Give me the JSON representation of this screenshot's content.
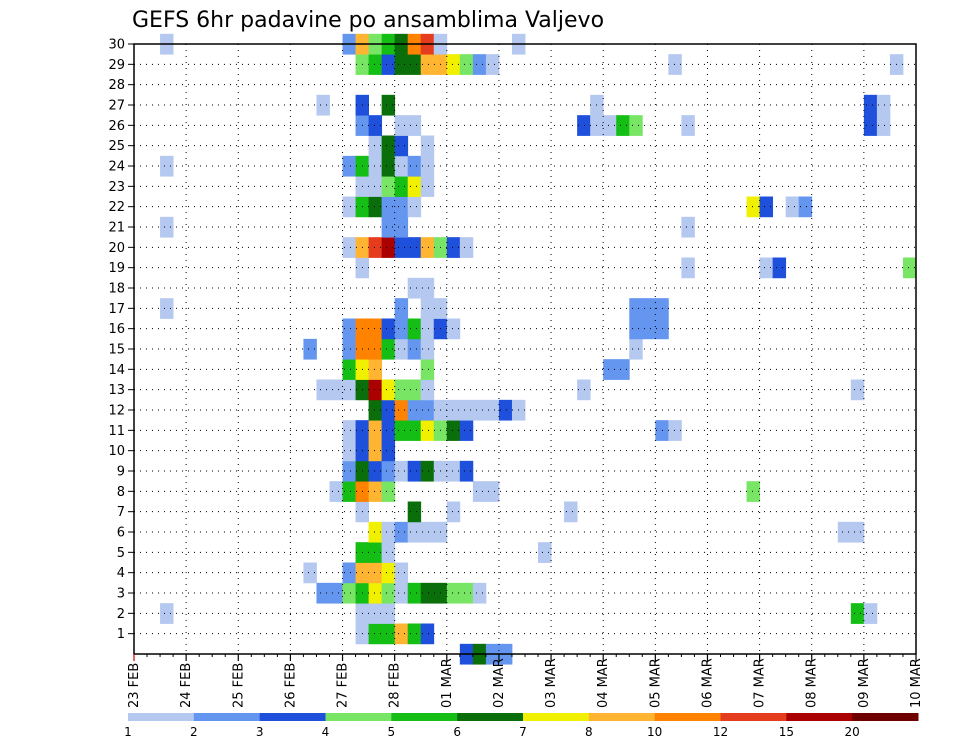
{
  "chart_data": {
    "type": "heatmap",
    "title": "GEFS 6hr padavine po ansamblima Valjevo",
    "xlabel": "",
    "ylabel": "",
    "y_ticks": [
      "1",
      "2",
      "3",
      "4",
      "5",
      "6",
      "7",
      "8",
      "9",
      "10",
      "11",
      "12",
      "13",
      "14",
      "15",
      "16",
      "17",
      "18",
      "19",
      "20",
      "21",
      "22",
      "23",
      "24",
      "25",
      "26",
      "27",
      "28",
      "29",
      "30"
    ],
    "x_ticks": [
      "23 FEB",
      "24 FEB",
      "25 FEB",
      "26 FEB",
      "27 FEB",
      "28 FEB",
      "01 MAR",
      "02 MAR",
      "03 MAR",
      "04 MAR",
      "05 MAR",
      "06 MAR",
      "07 MAR",
      "08 MAR",
      "09 MAR",
      "10 MAR"
    ],
    "x_unit": "6-hour step from 23 FEB 00Z (4 steps per day)",
    "x_range": [
      0,
      60
    ],
    "y_range": [
      0,
      30
    ],
    "grid": true,
    "legend": {
      "position": "bottom",
      "colors": [
        "#b4c8f0",
        "#6496f0",
        "#1e50dc",
        "#78e664",
        "#14be14",
        "#0a6e0a",
        "#f0f000",
        "#ffb432",
        "#ff8200",
        "#e63c1e",
        "#aa0000",
        "#6e0000"
      ],
      "labels": [
        "1",
        "2",
        "3",
        "4",
        "5",
        "6",
        "7",
        "8",
        "10",
        "12",
        "15",
        "20"
      ]
    },
    "cells_format": "[member, time_step, color_class]",
    "cells": [
      [
        0,
        25,
        3
      ],
      [
        0,
        26,
        6
      ],
      [
        0,
        27,
        2
      ],
      [
        0,
        28,
        2
      ],
      [
        1,
        17,
        1
      ],
      [
        1,
        18,
        5
      ],
      [
        1,
        19,
        5
      ],
      [
        1,
        20,
        8
      ],
      [
        1,
        21,
        5
      ],
      [
        1,
        22,
        3
      ],
      [
        2,
        2,
        1
      ],
      [
        2,
        17,
        1
      ],
      [
        2,
        18,
        1
      ],
      [
        2,
        19,
        1
      ],
      [
        2,
        55,
        5
      ],
      [
        2,
        56,
        1
      ],
      [
        3,
        14,
        2
      ],
      [
        3,
        15,
        2
      ],
      [
        3,
        16,
        4
      ],
      [
        3,
        17,
        5
      ],
      [
        3,
        18,
        7
      ],
      [
        3,
        19,
        4
      ],
      [
        3,
        20,
        1
      ],
      [
        3,
        21,
        5
      ],
      [
        3,
        22,
        6
      ],
      [
        3,
        23,
        6
      ],
      [
        3,
        24,
        4
      ],
      [
        3,
        25,
        4
      ],
      [
        3,
        26,
        1
      ],
      [
        4,
        13,
        1
      ],
      [
        4,
        16,
        2
      ],
      [
        4,
        17,
        8
      ],
      [
        4,
        18,
        8
      ],
      [
        4,
        19,
        7
      ],
      [
        4,
        20,
        1
      ],
      [
        5,
        17,
        5
      ],
      [
        5,
        18,
        5
      ],
      [
        5,
        19,
        1
      ],
      [
        5,
        31,
        1
      ],
      [
        6,
        18,
        7
      ],
      [
        6,
        19,
        1
      ],
      [
        6,
        20,
        2
      ],
      [
        6,
        21,
        1
      ],
      [
        6,
        22,
        1
      ],
      [
        6,
        23,
        1
      ],
      [
        6,
        54,
        1
      ],
      [
        6,
        55,
        1
      ],
      [
        7,
        17,
        1
      ],
      [
        7,
        21,
        6
      ],
      [
        7,
        24,
        1
      ],
      [
        7,
        33,
        1
      ],
      [
        8,
        15,
        1
      ],
      [
        8,
        16,
        5
      ],
      [
        8,
        17,
        9
      ],
      [
        8,
        18,
        8
      ],
      [
        8,
        19,
        4
      ],
      [
        8,
        26,
        1
      ],
      [
        8,
        27,
        1
      ],
      [
        8,
        47,
        4
      ],
      [
        9,
        16,
        2
      ],
      [
        9,
        17,
        6
      ],
      [
        9,
        18,
        3
      ],
      [
        9,
        19,
        2
      ],
      [
        9,
        20,
        1
      ],
      [
        9,
        21,
        3
      ],
      [
        9,
        22,
        6
      ],
      [
        9,
        23,
        1
      ],
      [
        9,
        24,
        1
      ],
      [
        9,
        25,
        3
      ],
      [
        10,
        16,
        1
      ],
      [
        10,
        17,
        3
      ],
      [
        10,
        18,
        8
      ],
      [
        10,
        19,
        3
      ],
      [
        11,
        16,
        1
      ],
      [
        11,
        17,
        3
      ],
      [
        11,
        18,
        8
      ],
      [
        11,
        19,
        3
      ],
      [
        11,
        20,
        5
      ],
      [
        11,
        21,
        5
      ],
      [
        11,
        22,
        7
      ],
      [
        11,
        23,
        4
      ],
      [
        11,
        24,
        6
      ],
      [
        11,
        25,
        3
      ],
      [
        11,
        40,
        2
      ],
      [
        11,
        41,
        1
      ],
      [
        12,
        18,
        6
      ],
      [
        12,
        19,
        3
      ],
      [
        12,
        20,
        9
      ],
      [
        12,
        21,
        2
      ],
      [
        12,
        22,
        2
      ],
      [
        12,
        23,
        1
      ],
      [
        12,
        24,
        1
      ],
      [
        12,
        25,
        1
      ],
      [
        12,
        26,
        1
      ],
      [
        12,
        27,
        1
      ],
      [
        12,
        28,
        3
      ],
      [
        12,
        29,
        1
      ],
      [
        13,
        14,
        1
      ],
      [
        13,
        15,
        1
      ],
      [
        13,
        16,
        1
      ],
      [
        13,
        17,
        6
      ],
      [
        13,
        18,
        11
      ],
      [
        13,
        19,
        7
      ],
      [
        13,
        20,
        4
      ],
      [
        13,
        21,
        4
      ],
      [
        13,
        22,
        1
      ],
      [
        13,
        34,
        1
      ],
      [
        13,
        55,
        1
      ],
      [
        14,
        16,
        5
      ],
      [
        14,
        17,
        7
      ],
      [
        14,
        18,
        8
      ],
      [
        14,
        22,
        4
      ],
      [
        14,
        36,
        2
      ],
      [
        14,
        37,
        2
      ],
      [
        15,
        13,
        2
      ],
      [
        15,
        16,
        2
      ],
      [
        15,
        17,
        9
      ],
      [
        15,
        18,
        9
      ],
      [
        15,
        19,
        5
      ],
      [
        15,
        20,
        1
      ],
      [
        15,
        21,
        2
      ],
      [
        15,
        22,
        1
      ],
      [
        15,
        38,
        1
      ],
      [
        16,
        16,
        2
      ],
      [
        16,
        17,
        9
      ],
      [
        16,
        18,
        9
      ],
      [
        16,
        19,
        3
      ],
      [
        16,
        20,
        2
      ],
      [
        16,
        21,
        5
      ],
      [
        16,
        22,
        1
      ],
      [
        16,
        23,
        3
      ],
      [
        16,
        24,
        1
      ],
      [
        16,
        38,
        2
      ],
      [
        16,
        39,
        2
      ],
      [
        16,
        40,
        2
      ],
      [
        17,
        2,
        1
      ],
      [
        17,
        20,
        2
      ],
      [
        17,
        22,
        1
      ],
      [
        17,
        23,
        1
      ],
      [
        17,
        38,
        2
      ],
      [
        17,
        39,
        2
      ],
      [
        17,
        40,
        2
      ],
      [
        18,
        21,
        1
      ],
      [
        18,
        22,
        1
      ],
      [
        19,
        17,
        1
      ],
      [
        19,
        42,
        1
      ],
      [
        19,
        48,
        1
      ],
      [
        19,
        49,
        3
      ],
      [
        19,
        59,
        4
      ],
      [
        20,
        16,
        1
      ],
      [
        20,
        17,
        8
      ],
      [
        20,
        18,
        10
      ],
      [
        20,
        19,
        11
      ],
      [
        20,
        20,
        3
      ],
      [
        20,
        21,
        3
      ],
      [
        20,
        22,
        8
      ],
      [
        20,
        23,
        4
      ],
      [
        20,
        24,
        3
      ],
      [
        20,
        25,
        1
      ],
      [
        21,
        2,
        1
      ],
      [
        21,
        19,
        2
      ],
      [
        21,
        20,
        2
      ],
      [
        21,
        42,
        1
      ],
      [
        22,
        16,
        1
      ],
      [
        22,
        17,
        5
      ],
      [
        22,
        18,
        6
      ],
      [
        22,
        19,
        2
      ],
      [
        22,
        20,
        2
      ],
      [
        22,
        21,
        1
      ],
      [
        22,
        47,
        7
      ],
      [
        22,
        48,
        3
      ],
      [
        22,
        50,
        1
      ],
      [
        22,
        51,
        2
      ],
      [
        23,
        17,
        1
      ],
      [
        23,
        18,
        1
      ],
      [
        23,
        19,
        4
      ],
      [
        23,
        20,
        5
      ],
      [
        23,
        21,
        7
      ],
      [
        23,
        22,
        1
      ],
      [
        24,
        2,
        1
      ],
      [
        24,
        16,
        2
      ],
      [
        24,
        17,
        5
      ],
      [
        24,
        18,
        1
      ],
      [
        24,
        19,
        6
      ],
      [
        24,
        20,
        1
      ],
      [
        24,
        21,
        2
      ],
      [
        24,
        22,
        1
      ],
      [
        25,
        18,
        1
      ],
      [
        25,
        19,
        6
      ],
      [
        25,
        20,
        3
      ],
      [
        25,
        22,
        1
      ],
      [
        26,
        17,
        2
      ],
      [
        26,
        18,
        3
      ],
      [
        26,
        20,
        1
      ],
      [
        26,
        21,
        1
      ],
      [
        26,
        34,
        3
      ],
      [
        26,
        35,
        1
      ],
      [
        26,
        36,
        1
      ],
      [
        26,
        37,
        5
      ],
      [
        26,
        38,
        4
      ],
      [
        26,
        42,
        1
      ],
      [
        26,
        56,
        3
      ],
      [
        26,
        57,
        1
      ],
      [
        27,
        14,
        1
      ],
      [
        27,
        17,
        3
      ],
      [
        27,
        19,
        6
      ],
      [
        27,
        35,
        1
      ],
      [
        27,
        56,
        3
      ],
      [
        27,
        57,
        1
      ],
      [
        29,
        17,
        4
      ],
      [
        29,
        18,
        5
      ],
      [
        29,
        19,
        3
      ],
      [
        29,
        20,
        6
      ],
      [
        29,
        21,
        6
      ],
      [
        29,
        22,
        8
      ],
      [
        29,
        23,
        8
      ],
      [
        29,
        24,
        7
      ],
      [
        29,
        25,
        4
      ],
      [
        29,
        26,
        2
      ],
      [
        29,
        27,
        1
      ],
      [
        29,
        41,
        1
      ],
      [
        29,
        58,
        1
      ],
      [
        30,
        2,
        1
      ],
      [
        30,
        16,
        2
      ],
      [
        30,
        17,
        8
      ],
      [
        30,
        18,
        4
      ],
      [
        30,
        19,
        5
      ],
      [
        30,
        20,
        6
      ],
      [
        30,
        21,
        9
      ],
      [
        30,
        22,
        10
      ],
      [
        30,
        23,
        1
      ],
      [
        30,
        29,
        1
      ]
    ]
  }
}
